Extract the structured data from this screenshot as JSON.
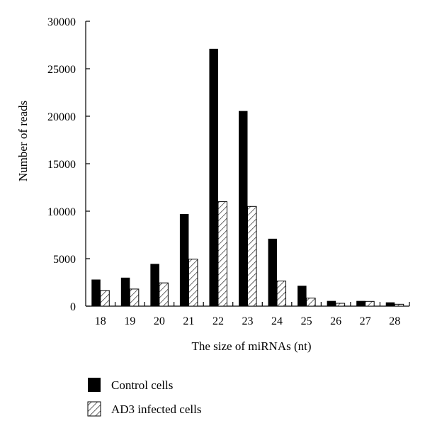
{
  "chart_data": {
    "type": "bar",
    "categories": [
      "18",
      "19",
      "20",
      "21",
      "22",
      "23",
      "24",
      "25",
      "26",
      "27",
      "28"
    ],
    "series": [
      {
        "name": "Control cells",
        "values": [
          2800,
          3000,
          4450,
          9700,
          27100,
          20550,
          7100,
          2150,
          550,
          550,
          400
        ],
        "fill": "solid"
      },
      {
        "name": "AD3 infected cells",
        "values": [
          1650,
          1800,
          2450,
          4950,
          11000,
          10500,
          2650,
          850,
          300,
          500,
          200
        ],
        "fill": "hatched"
      }
    ],
    "title": "",
    "xlabel": "The size of miRNAs (nt)",
    "ylabel": "Number of reads",
    "ylim": [
      0,
      30000
    ],
    "yticks": [
      0,
      5000,
      10000,
      15000,
      20000,
      25000,
      30000
    ],
    "grid": false,
    "legend_position": "bottom-left"
  },
  "colors": {
    "control": "#000000",
    "infected_hatch": "#000000",
    "background": "#ffffff"
  }
}
